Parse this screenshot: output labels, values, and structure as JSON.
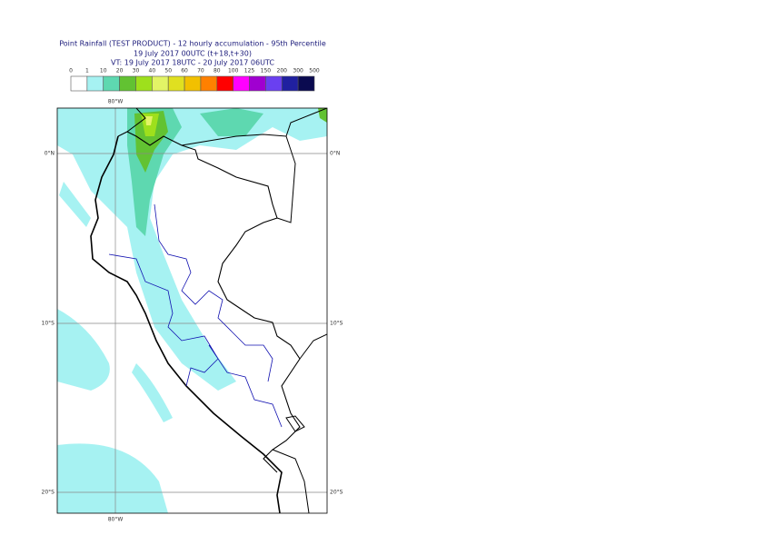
{
  "header": {
    "title": "Point Rainfall (TEST PRODUCT) - 12 hourly accumulation - 95th Percentile",
    "run": "19 July 2017 00UTC (t+18,t+30)",
    "valid": "VT: 19 July 2017 18UTC - 20 July 2017 06UTC"
  },
  "legend": {
    "thresholds": [
      "0",
      "1",
      "10",
      "20",
      "30",
      "40",
      "50",
      "60",
      "70",
      "80",
      "100",
      "125",
      "150",
      "200",
      "300",
      "500"
    ],
    "colors": [
      "#ffffff",
      "#a6f2f2",
      "#5ed8b0",
      "#62c232",
      "#9ee01c",
      "#e2f466",
      "#e0e020",
      "#f2c000",
      "#ff8000",
      "#ff0000",
      "#ff00ff",
      "#a000d0",
      "#6a40f0",
      "#2020a0",
      "#0a0a50"
    ]
  },
  "map": {
    "lon_labels": [
      "80°W"
    ],
    "lat_labels": [
      "0°N",
      "10°S",
      "20°S"
    ]
  }
}
